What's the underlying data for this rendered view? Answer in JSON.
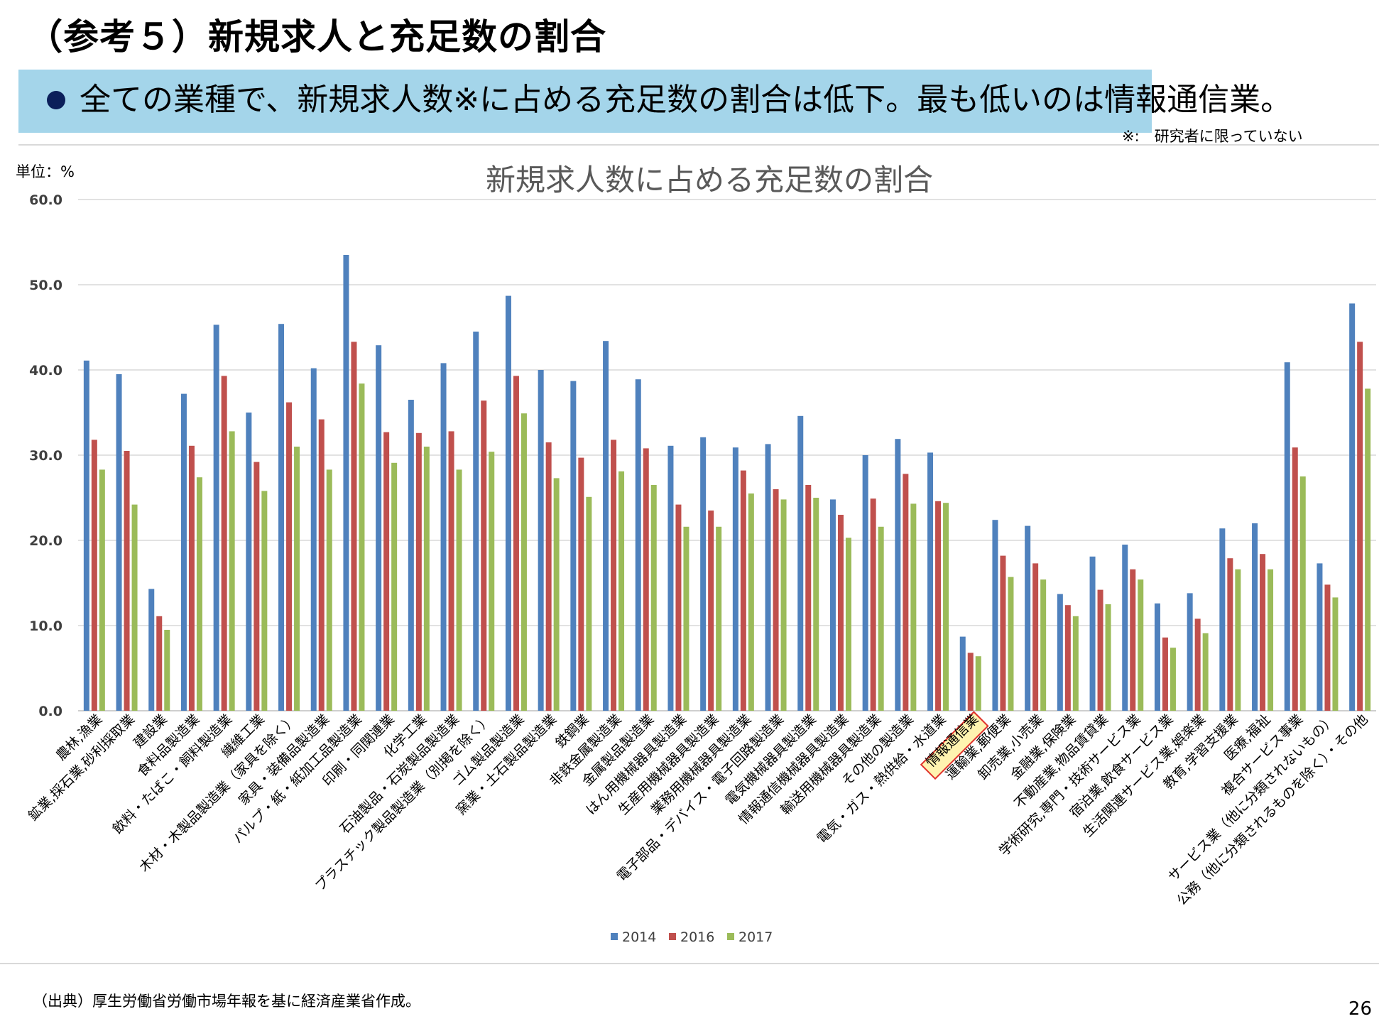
{
  "slide": {
    "title": "（参考５）新規求人と充足数の割合",
    "banner_text": "全ての業種で、新規求人数※に占める充足数の割合は低下。最も低いのは情報通信業。",
    "banner_note": "※:　研究者に限っていない",
    "unit_label": "単位：%",
    "source": "（出典）厚生労働省労働市場年報を基に経済産業省作成。",
    "page_number": "26"
  },
  "colors": {
    "s2014": "#4f81bd",
    "s2016": "#c0504d",
    "s2017": "#9bbb59",
    "banner": "#a4d5ea",
    "highlight_border": "#e0302a",
    "highlight_fill": "#fff3b0"
  },
  "chart_data": {
    "type": "bar",
    "title": "新規求人数に占める充足数の割合",
    "xlabel": "",
    "ylabel": "",
    "ylim": [
      0,
      60
    ],
    "yticks": [
      "0.0",
      "10.0",
      "20.0",
      "30.0",
      "40.0",
      "50.0",
      "60.0"
    ],
    "grid": true,
    "legend_position": "bottom",
    "highlighted_category": "情報通信業",
    "categories": [
      "農林,漁業",
      "鉱業,採石業,砂利採取業",
      "建設業",
      "食料品製造業",
      "飲料・たばこ・飼料製造業",
      "繊維工業",
      "木材・木製品製造業（家具を除く）",
      "家具・装備品製造業",
      "パルプ・紙・紙加工品製造業",
      "印刷・同関連業",
      "化学工業",
      "石油製品・石炭製品製造業",
      "プラスチック製品製造業（別掲を除く）",
      "ゴム製品製造業",
      "窯業・土石製品製造業",
      "鉄鋼業",
      "非鉄金属製造業",
      "金属製品製造業",
      "はん用機械器具製造業",
      "生産用機械器具製造業",
      "業務用機械器具製造業",
      "電子部品・デバイス・電子回路製造業",
      "電気機械器具製造業",
      "情報通信機械器具製造業",
      "輸送用機械器具製造業",
      "その他の製造業",
      "電気・ガス・熱供給・水道業",
      "情報通信業",
      "運輸業,郵便業",
      "卸売業,小売業",
      "金融業,保険業",
      "不動産業,物品賃貸業",
      "学術研究,専門・技術サービス業",
      "宿泊業,飲食サービス業",
      "生活関連サービス業,娯楽業",
      "教育,学習支援業",
      "医療,福祉",
      "複合サービス事業",
      "サービス業（他に分類されないもの）",
      "公務（他に分類されるものを除く）・その他"
    ],
    "series": [
      {
        "name": "2014",
        "values": [
          41.1,
          39.5,
          14.3,
          37.2,
          45.3,
          35.0,
          45.4,
          40.2,
          53.5,
          42.9,
          36.5,
          40.8,
          44.5,
          48.7,
          40.0,
          38.7,
          43.4,
          38.9,
          31.1,
          32.1,
          30.9,
          31.3,
          34.6,
          24.8,
          30.0,
          31.9,
          30.3,
          8.7,
          22.4,
          21.7,
          13.7,
          18.1,
          19.5,
          12.6,
          13.8,
          21.4,
          22.0,
          40.9,
          17.3,
          47.8
        ]
      },
      {
        "name": "2016",
        "values": [
          31.8,
          30.5,
          11.1,
          31.1,
          39.3,
          29.2,
          36.2,
          34.2,
          43.3,
          32.7,
          32.6,
          32.8,
          36.4,
          39.3,
          31.5,
          29.7,
          31.8,
          30.8,
          24.2,
          23.5,
          28.2,
          26.0,
          26.5,
          23.0,
          24.9,
          27.8,
          24.6,
          6.8,
          18.2,
          17.3,
          12.4,
          14.2,
          16.6,
          8.6,
          10.8,
          17.9,
          18.4,
          30.9,
          14.8,
          43.3
        ]
      },
      {
        "name": "2017",
        "values": [
          28.3,
          24.2,
          9.5,
          27.4,
          32.8,
          25.8,
          31.0,
          28.3,
          38.4,
          29.1,
          31.0,
          28.3,
          30.4,
          34.9,
          27.3,
          25.1,
          28.1,
          26.5,
          21.6,
          21.6,
          25.5,
          24.8,
          25.0,
          20.3,
          21.6,
          24.3,
          24.4,
          6.4,
          15.7,
          15.4,
          11.1,
          12.5,
          15.4,
          7.4,
          9.1,
          16.6,
          16.6,
          27.5,
          13.3,
          37.8
        ]
      }
    ]
  }
}
